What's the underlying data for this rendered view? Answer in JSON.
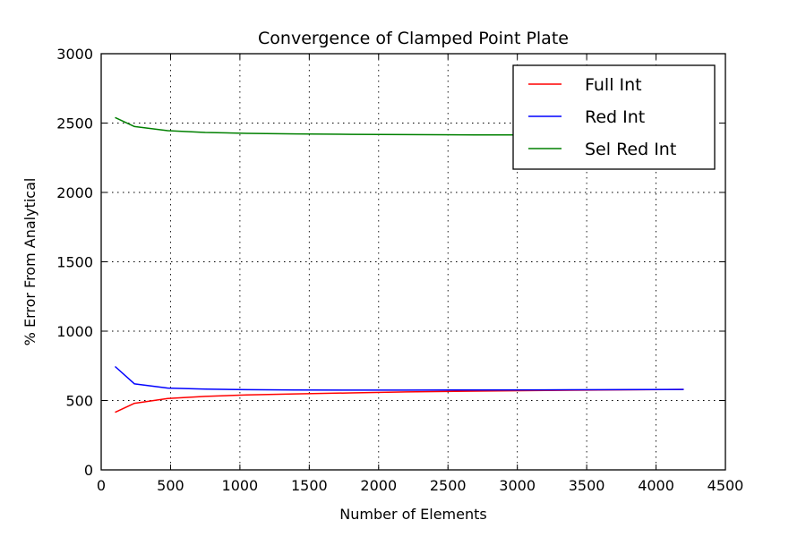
{
  "chart_data": {
    "type": "line",
    "title": "Convergence of Clamped Point Plate",
    "xlabel": "Number of Elements",
    "ylabel": "% Error From Analytical",
    "xlim": [
      0,
      4500
    ],
    "ylim": [
      0,
      3000
    ],
    "xticks": [
      0,
      500,
      1000,
      1500,
      2000,
      2500,
      3000,
      3500,
      4000,
      4500
    ],
    "yticks": [
      0,
      500,
      1000,
      1500,
      2000,
      2500,
      3000
    ],
    "grid": true,
    "legend_position": "top-right",
    "series": [
      {
        "name": "Full Int",
        "color": "#ff0000",
        "x": [
          100,
          240,
          480,
          750,
          1050,
          1400,
          1800,
          2200,
          2700,
          3200,
          3700,
          4200
        ],
        "y": [
          415,
          480,
          515,
          530,
          540,
          548,
          555,
          562,
          568,
          573,
          577,
          580
        ]
      },
      {
        "name": "Red Int",
        "color": "#0000ff",
        "x": [
          100,
          240,
          480,
          750,
          1050,
          1400,
          1800,
          2200,
          2700,
          3200,
          3700,
          4200
        ],
        "y": [
          745,
          620,
          590,
          582,
          578,
          576,
          575,
          575,
          576,
          577,
          578,
          580
        ]
      },
      {
        "name": "Sel Red Int",
        "color": "#008000",
        "x": [
          100,
          240,
          480,
          750,
          1050,
          1400,
          1800,
          2200,
          2700,
          3200,
          3700,
          4200
        ],
        "y": [
          2540,
          2475,
          2445,
          2432,
          2426,
          2422,
          2419,
          2417,
          2415,
          2414,
          2413,
          2412
        ]
      }
    ]
  }
}
